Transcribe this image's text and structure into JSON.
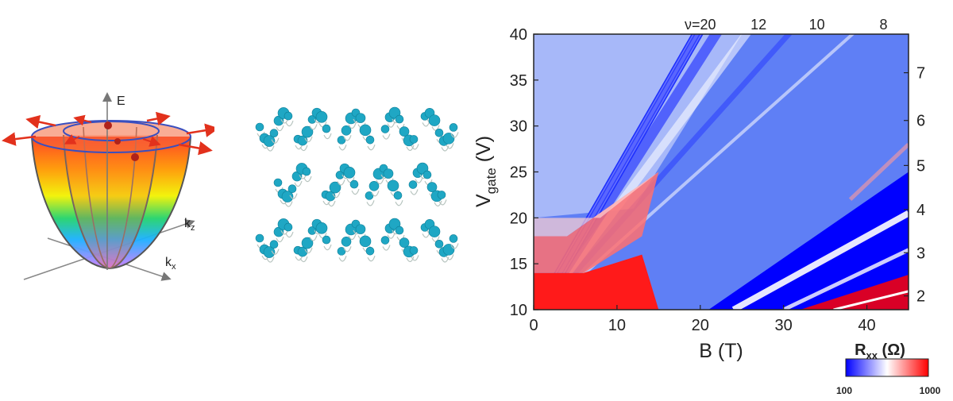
{
  "band_diagram": {
    "axis_e": "E",
    "axis_kz": "k",
    "axis_kz_sub": "z",
    "axis_kx": "k",
    "axis_kx_sub": "x"
  },
  "chart_data": {
    "type": "heatmap",
    "xlabel": "B (T)",
    "ylabel_main": "V",
    "ylabel_sub": "gate",
    "ylabel_unit": " (V)",
    "xlim": [
      0,
      45
    ],
    "ylim": [
      10,
      40
    ],
    "x_ticks": [
      "0",
      "10",
      "20",
      "30",
      "40"
    ],
    "x_tick_values": [
      0,
      10,
      20,
      30,
      40
    ],
    "y_ticks": [
      "10",
      "15",
      "20",
      "25",
      "30",
      "35",
      "40"
    ],
    "y_tick_values": [
      10,
      15,
      20,
      25,
      30,
      35,
      40
    ],
    "right_ticks": [
      "2",
      "3",
      "4",
      "5",
      "6",
      "7"
    ],
    "right_tick_values": [
      11.5,
      16.2,
      20.9,
      25.7,
      30.6,
      35.8
    ],
    "top_labels": [
      "ν=20",
      "12",
      "10",
      "8"
    ],
    "top_label_values": [
      20,
      27,
      34,
      42
    ],
    "colorbar": {
      "label_main": "R",
      "label_sub": "xx",
      "label_unit": " (Ω)",
      "min_label": "100",
      "max_label": "1000",
      "colors": [
        "#0000ff",
        "#ffffff",
        "#ff0000"
      ]
    }
  }
}
